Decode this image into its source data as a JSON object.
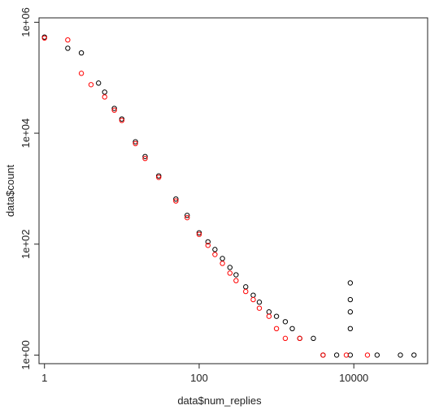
{
  "chart_data": {
    "type": "scatter",
    "title": "",
    "xlabel": "data$num_replies",
    "ylabel": "data$count",
    "x_scale": "log",
    "y_scale": "log",
    "xlim": [
      0.85,
      90000
    ],
    "ylim": [
      0.7,
      1200000
    ],
    "x_ticks": [
      {
        "value": 1,
        "label": "1"
      },
      {
        "value": 100,
        "label": "100"
      },
      {
        "value": 10000,
        "label": "10000"
      }
    ],
    "y_ticks": [
      {
        "value": 1,
        "label": "1e+00"
      },
      {
        "value": 100,
        "label": "1e+02"
      },
      {
        "value": 10000,
        "label": "1e+04"
      },
      {
        "value": 1000000,
        "label": "1e+06"
      }
    ],
    "grid": false,
    "marker": "open-circle",
    "series": [
      {
        "color": "#000000",
        "points": [
          [
            1,
            540000
          ],
          [
            2,
            340000
          ],
          [
            3,
            280000
          ],
          [
            5,
            80000
          ],
          [
            6,
            55000
          ],
          [
            8,
            28000
          ],
          [
            10,
            18000
          ],
          [
            15,
            7000
          ],
          [
            20,
            3800
          ],
          [
            30,
            1700
          ],
          [
            50,
            650
          ],
          [
            70,
            330
          ],
          [
            100,
            160
          ],
          [
            130,
            110
          ],
          [
            160,
            80
          ],
          [
            200,
            55
          ],
          [
            250,
            38
          ],
          [
            300,
            28
          ],
          [
            400,
            17
          ],
          [
            500,
            12
          ],
          [
            600,
            9
          ],
          [
            800,
            6
          ],
          [
            1000,
            5
          ],
          [
            1300,
            4
          ],
          [
            1600,
            3
          ],
          [
            2000,
            2
          ],
          [
            3000,
            2
          ],
          [
            4000,
            1
          ],
          [
            6000,
            1
          ],
          [
            9000,
            1
          ],
          [
            9000,
            3
          ],
          [
            9000,
            6
          ],
          [
            9000,
            10
          ],
          [
            9000,
            20
          ],
          [
            20000,
            1
          ],
          [
            40000,
            1
          ],
          [
            60000,
            1
          ]
        ]
      },
      {
        "color": "#ff0000",
        "points": [
          [
            1,
            520000
          ],
          [
            2,
            480000
          ],
          [
            3,
            120000
          ],
          [
            4,
            75000
          ],
          [
            6,
            45000
          ],
          [
            8,
            26000
          ],
          [
            10,
            17000
          ],
          [
            15,
            6500
          ],
          [
            20,
            3500
          ],
          [
            30,
            1600
          ],
          [
            50,
            600
          ],
          [
            70,
            300
          ],
          [
            100,
            150
          ],
          [
            130,
            95
          ],
          [
            160,
            65
          ],
          [
            200,
            45
          ],
          [
            250,
            30
          ],
          [
            300,
            22
          ],
          [
            400,
            14
          ],
          [
            500,
            10
          ],
          [
            600,
            7
          ],
          [
            800,
            5
          ],
          [
            1000,
            3
          ],
          [
            1300,
            2
          ],
          [
            2000,
            2
          ],
          [
            4000,
            1
          ],
          [
            8000,
            1
          ],
          [
            15000,
            1
          ]
        ]
      }
    ]
  }
}
